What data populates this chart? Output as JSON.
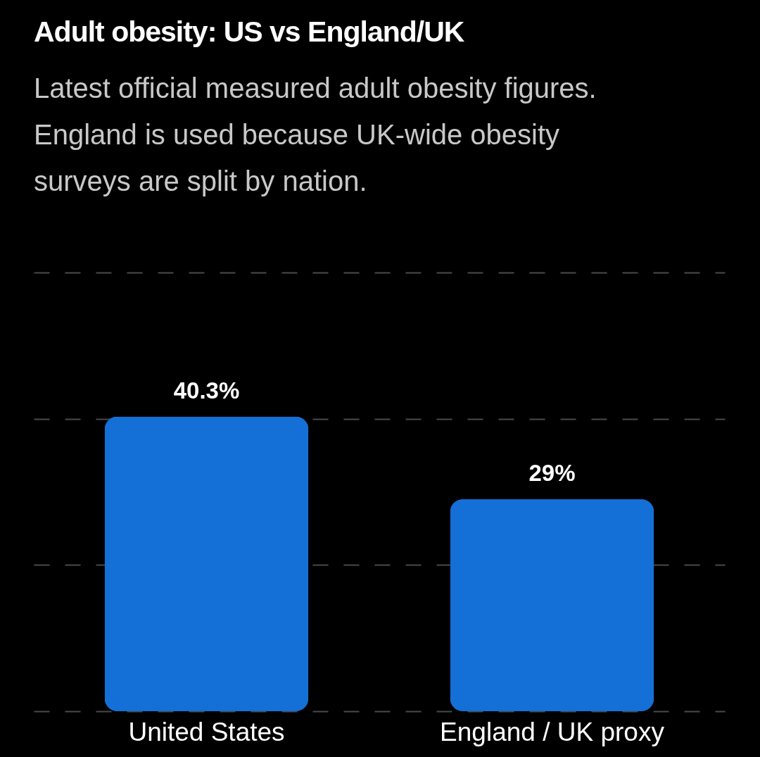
{
  "chart_data": {
    "type": "bar",
    "title": "Adult obesity: US vs England/UK",
    "subtitle": "Latest official measured adult obesity figures.\nEngland is used because UK-wide obesity\nsurveys are split by nation.",
    "categories": [
      "United States",
      "England / UK proxy"
    ],
    "values": [
      40.3,
      29
    ],
    "value_labels": [
      "40.3%",
      "29%"
    ],
    "color": "#1470d6",
    "ylim": [
      0,
      60
    ],
    "yticks": [
      {
        "value": 0,
        "label": null
      },
      {
        "value": 20,
        "label": null
      },
      {
        "value": 40,
        "label": null
      },
      {
        "value": 60,
        "label": null
      }
    ],
    "grid": "y",
    "tick_labels": "x"
  }
}
